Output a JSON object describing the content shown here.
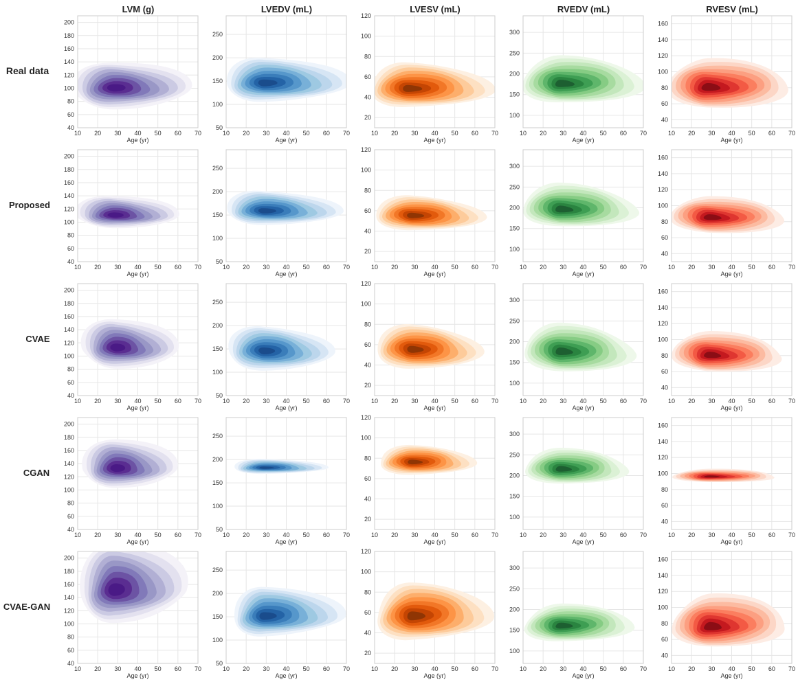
{
  "figure": {
    "columns": [
      "LVM (g)",
      "LVEDV (mL)",
      "LVESV (mL)",
      "RVEDV (mL)",
      "RVESV (mL)"
    ],
    "rows": [
      "Real data",
      "Proposed",
      "CVAE",
      "CGAN",
      "CVAE-GAN"
    ],
    "x_label": "Age (yr)",
    "x_ticks": [
      10,
      20,
      30,
      40,
      50,
      60,
      70
    ],
    "xlim": [
      10,
      70
    ],
    "palettes": {
      "purple": [
        "#f4f2f8",
        "#e3e1ef",
        "#cbcae3",
        "#b1afd4",
        "#9997c6",
        "#8179b9",
        "#6c53a4",
        "#5a2d91",
        "#4a1a86"
      ],
      "blue": [
        "#eef4fb",
        "#d6e5f4",
        "#bcd6ec",
        "#9ec9e2",
        "#78b0d8",
        "#5697cb",
        "#3a7dba",
        "#2463a6",
        "#1a4c8c"
      ],
      "orange": [
        "#fdf0e2",
        "#fde0c2",
        "#fdcb9b",
        "#fdae6b",
        "#fd9446",
        "#f27727",
        "#e25a0c",
        "#c44503",
        "#8f3504"
      ],
      "green": [
        "#eef8ea",
        "#dbf1d5",
        "#c3e7bc",
        "#a7dba0",
        "#86cc84",
        "#5fb66b",
        "#3e9e53",
        "#2a8440",
        "#1d5f31"
      ],
      "red": [
        "#fdece4",
        "#fcd6c6",
        "#fcbba1",
        "#fc9f81",
        "#fb7e5f",
        "#f35a44",
        "#df3630",
        "#c4191f",
        "#8b0d15"
      ]
    }
  },
  "chart_data": [
    {
      "type": "heatmap",
      "title": "LVM (g)",
      "xlabel": "Age (yr)",
      "ylabel": "",
      "xlim": [
        10,
        70
      ],
      "ylim": [
        40,
        210
      ],
      "y_ticks": [
        40,
        60,
        80,
        100,
        120,
        140,
        160,
        180,
        200
      ],
      "grid": true,
      "colormap": "purple",
      "series": [
        {
          "name": "Real data",
          "mode": [
            28,
            100
          ],
          "spread_age": [
            15,
            28
          ],
          "spread_value": [
            24,
            32
          ],
          "bulge": [
            0,
            0
          ]
        },
        {
          "name": "Proposed",
          "mode": [
            28,
            110
          ],
          "spread_age": [
            14,
            24
          ],
          "spread_value": [
            14,
            24
          ],
          "bulge": [
            0,
            0
          ]
        },
        {
          "name": "CVAE",
          "mode": [
            29,
            112
          ],
          "spread_age": [
            13,
            24
          ],
          "spread_value": [
            22,
            34
          ],
          "bulge": [
            0,
            0
          ]
        },
        {
          "name": "CGAN",
          "mode": [
            29,
            132
          ],
          "spread_age": [
            13,
            24
          ],
          "spread_value": [
            20,
            34
          ],
          "bulge": [
            0,
            0
          ]
        },
        {
          "name": "CVAE-GAN",
          "mode": [
            28,
            150
          ],
          "spread_age": [
            13,
            28
          ],
          "spread_value": [
            34,
            56
          ],
          "bulge": [
            0,
            0
          ]
        }
      ]
    },
    {
      "type": "heatmap",
      "title": "LVEDV (mL)",
      "xlabel": "Age (yr)",
      "ylabel": "",
      "xlim": [
        10,
        70
      ],
      "ylim": [
        50,
        290
      ],
      "y_ticks": [
        50,
        100,
        150,
        200,
        250
      ],
      "grid": true,
      "colormap": "blue",
      "series": [
        {
          "name": "Real data",
          "mode": [
            29,
            145
          ],
          "spread_age": [
            14,
            30
          ],
          "spread_value": [
            30,
            44
          ],
          "bulge": [
            0,
            0
          ]
        },
        {
          "name": "Proposed",
          "mode": [
            29,
            158
          ],
          "spread_age": [
            14,
            28
          ],
          "spread_value": [
            22,
            34
          ],
          "bulge": [
            0,
            0
          ]
        },
        {
          "name": "CVAE",
          "mode": [
            29,
            145
          ],
          "spread_age": [
            14,
            26
          ],
          "spread_value": [
            30,
            40
          ],
          "bulge": [
            0,
            0
          ]
        },
        {
          "name": "CGAN",
          "mode": [
            29,
            182
          ],
          "spread_age": [
            12,
            24
          ],
          "spread_value": [
            9,
            14
          ],
          "bulge": [
            0,
            0
          ]
        },
        {
          "name": "CVAE-GAN",
          "mode": [
            29,
            150
          ],
          "spread_age": [
            12,
            30
          ],
          "spread_value": [
            30,
            48
          ],
          "bulge": [
            0,
            0
          ]
        }
      ]
    },
    {
      "type": "heatmap",
      "title": "LVESV (mL)",
      "xlabel": "Age (yr)",
      "ylabel": "",
      "xlim": [
        10,
        70
      ],
      "ylim": [
        10,
        120
      ],
      "y_ticks": [
        20,
        40,
        60,
        80,
        100,
        120
      ],
      "grid": true,
      "colormap": "orange",
      "series": [
        {
          "name": "Real data",
          "mode": [
            27,
            48
          ],
          "spread_age": [
            14,
            30
          ],
          "spread_value": [
            14,
            20
          ],
          "bulge": [
            0,
            0
          ]
        },
        {
          "name": "Proposed",
          "mode": [
            29,
            55
          ],
          "spread_age": [
            14,
            26
          ],
          "spread_value": [
            11,
            15
          ],
          "bulge": [
            0,
            0
          ]
        },
        {
          "name": "CVAE",
          "mode": [
            29,
            55
          ],
          "spread_age": [
            14,
            26
          ],
          "spread_value": [
            14,
            18
          ],
          "bulge": [
            0,
            0
          ]
        },
        {
          "name": "CGAN",
          "mode": [
            29,
            76
          ],
          "spread_age": [
            13,
            24
          ],
          "spread_value": [
            9,
            12
          ],
          "bulge": [
            0,
            0
          ]
        },
        {
          "name": "CVAE-GAN",
          "mode": [
            29,
            56
          ],
          "spread_age": [
            14,
            30
          ],
          "spread_value": [
            17,
            24
          ],
          "bulge": [
            0,
            0
          ]
        }
      ]
    },
    {
      "type": "heatmap",
      "title": "RVEDV (mL)",
      "xlabel": "Age (yr)",
      "ylabel": "",
      "xlim": [
        10,
        70
      ],
      "ylim": [
        70,
        340
      ],
      "y_ticks": [
        100,
        150,
        200,
        250,
        300
      ],
      "grid": true,
      "colormap": "green",
      "series": [
        {
          "name": "Real data",
          "mode": [
            29,
            175
          ],
          "spread_age": [
            14,
            30
          ],
          "spread_value": [
            36,
            52
          ],
          "bulge": [
            0,
            0
          ]
        },
        {
          "name": "Proposed",
          "mode": [
            29,
            195
          ],
          "spread_age": [
            14,
            28
          ],
          "spread_value": [
            32,
            48
          ],
          "bulge": [
            0,
            0
          ]
        },
        {
          "name": "CVAE",
          "mode": [
            29,
            175
          ],
          "spread_age": [
            14,
            28
          ],
          "spread_value": [
            36,
            50
          ],
          "bulge": [
            0,
            0
          ]
        },
        {
          "name": "CGAN",
          "mode": [
            29,
            215
          ],
          "spread_age": [
            14,
            26
          ],
          "spread_value": [
            26,
            36
          ],
          "bulge": [
            0,
            0
          ]
        },
        {
          "name": "CVAE-GAN",
          "mode": [
            29,
            160
          ],
          "spread_age": [
            14,
            28
          ],
          "spread_value": [
            28,
            38
          ],
          "bulge": [
            0,
            0
          ]
        }
      ]
    },
    {
      "type": "heatmap",
      "title": "RVESV (mL)",
      "xlabel": "Age (yr)",
      "ylabel": "",
      "xlim": [
        10,
        70
      ],
      "ylim": [
        30,
        170
      ],
      "y_ticks": [
        40,
        60,
        80,
        100,
        120,
        140,
        160
      ],
      "grid": true,
      "colormap": "red",
      "series": [
        {
          "name": "Real data",
          "mode": [
            28,
            80
          ],
          "spread_age": [
            14,
            30
          ],
          "spread_value": [
            20,
            28
          ],
          "bulge": [
            0,
            0
          ]
        },
        {
          "name": "Proposed",
          "mode": [
            29,
            85
          ],
          "spread_age": [
            14,
            28
          ],
          "spread_value": [
            15,
            20
          ],
          "bulge": [
            0,
            0
          ]
        },
        {
          "name": "CVAE",
          "mode": [
            29,
            80
          ],
          "spread_age": [
            14,
            28
          ],
          "spread_value": [
            15,
            22
          ],
          "bulge": [
            0,
            0
          ]
        },
        {
          "name": "CGAN",
          "mode": [
            29,
            96
          ],
          "spread_age": [
            14,
            26
          ],
          "spread_value": [
            5,
            7
          ],
          "bulge": [
            0,
            0
          ]
        },
        {
          "name": "CVAE-GAN",
          "mode": [
            29,
            75
          ],
          "spread_age": [
            14,
            30
          ],
          "spread_value": [
            18,
            30
          ],
          "bulge": [
            0,
            0
          ]
        }
      ]
    }
  ]
}
